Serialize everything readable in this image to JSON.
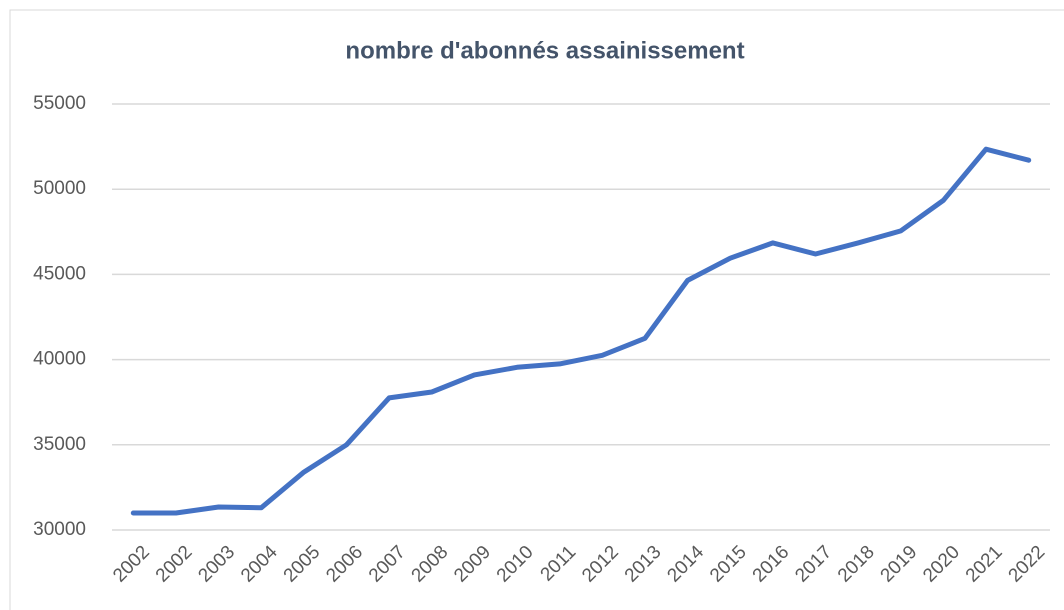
{
  "chart_data": {
    "type": "line",
    "title": "nombre d'abonnés assainissement",
    "categories": [
      "2002",
      "2002",
      "2003",
      "2004",
      "2005",
      "2006",
      "2007",
      "2008",
      "2009",
      "2010",
      "2011",
      "2012",
      "2013",
      "2014",
      "2015",
      "2016",
      "2017",
      "2018",
      "2019",
      "2020",
      "2021",
      "2022"
    ],
    "values": [
      31000,
      31000,
      31350,
      31300,
      33400,
      35000,
      37750,
      38100,
      39100,
      39550,
      39750,
      40250,
      41250,
      44650,
      45950,
      46850,
      46200,
      46850,
      47550,
      49350,
      52350,
      51700
    ],
    "color": "#4472c4",
    "ylim": [
      30000,
      55000
    ],
    "yticks": [
      30000,
      35000,
      40000,
      45000,
      50000,
      55000
    ],
    "grid": true
  }
}
